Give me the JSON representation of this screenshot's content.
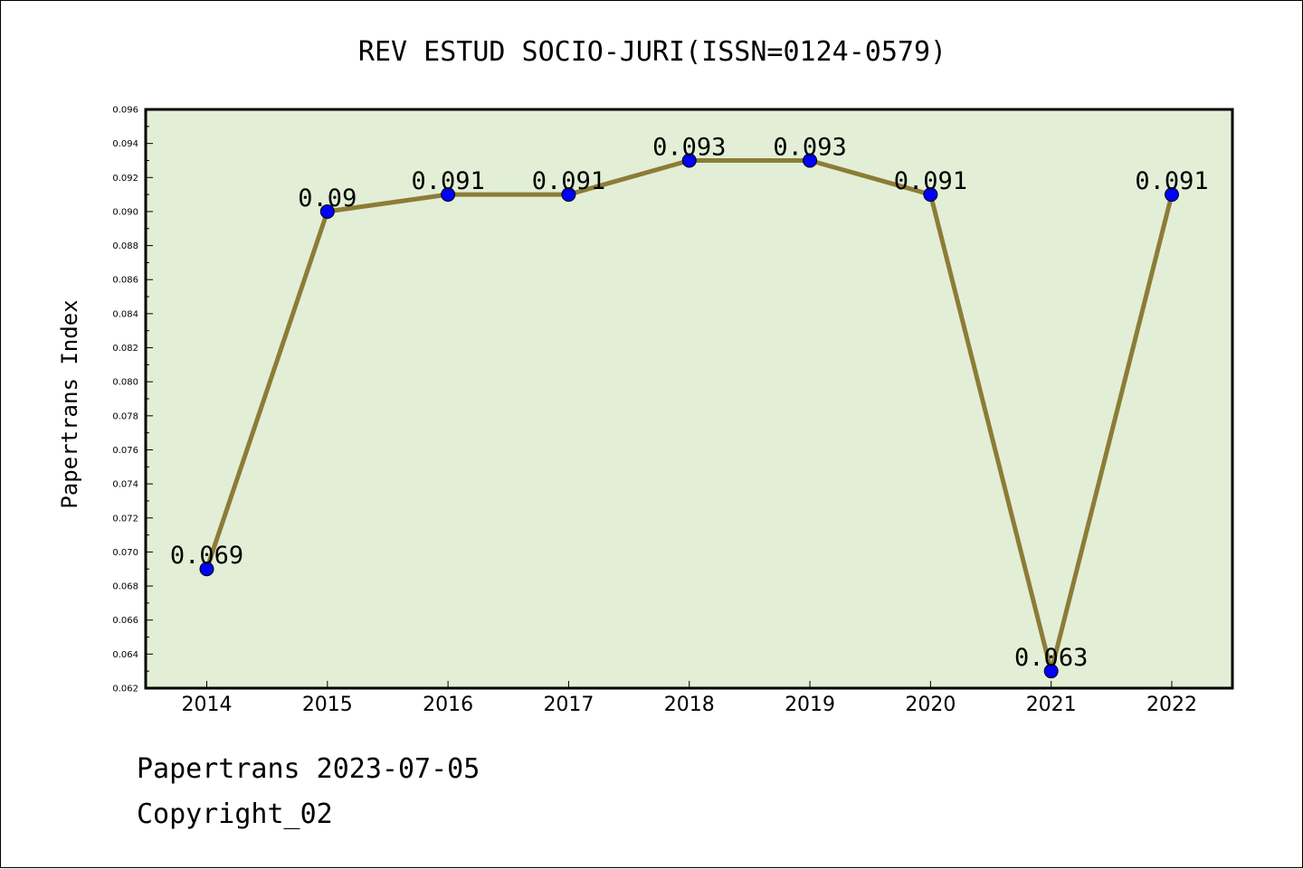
{
  "chart_data": {
    "type": "line",
    "title": "REV ESTUD SOCIO-JURI(ISSN=0124-0579)",
    "xlabel": "",
    "ylabel": "Papertrans Index",
    "categories": [
      "2014",
      "2015",
      "2016",
      "2017",
      "2018",
      "2019",
      "2020",
      "2021",
      "2022"
    ],
    "series": [
      {
        "values": [
          0.069,
          0.09,
          0.091,
          0.091,
          0.093,
          0.093,
          0.091,
          0.063,
          0.091
        ],
        "labels": [
          "0.069",
          "0.09",
          "0.091",
          "0.091",
          "0.093",
          "0.093",
          "0.091",
          "0.063",
          "0.091"
        ]
      }
    ],
    "ylim": [
      0.062,
      0.096
    ],
    "yticks": [
      "0.062",
      "0.064",
      "0.066",
      "0.068",
      "0.070",
      "0.072",
      "0.074",
      "0.076",
      "0.078",
      "0.080",
      "0.082",
      "0.084",
      "0.086",
      "0.088",
      "0.090",
      "0.092",
      "0.094",
      "0.096"
    ],
    "grid": false,
    "legend": "none",
    "colors": {
      "plot_background": "#e2efd6",
      "line": "#8c7c37",
      "marker": "#0000ff",
      "axis": "#000000"
    }
  },
  "footer": {
    "line1": "Papertrans 2023-07-05",
    "line2": "Copyright_02"
  }
}
